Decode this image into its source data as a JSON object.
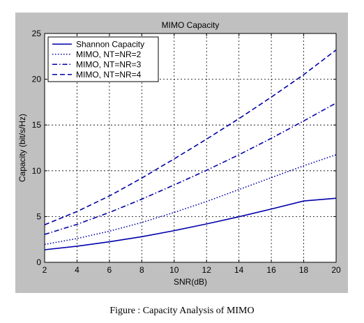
{
  "caption": "Figure : Capacity Analysis of MIMO",
  "chart_data": {
    "type": "line",
    "title": "MIMO Capacity",
    "xlabel": "SNR(dB)",
    "ylabel": "Capacity (bit/s/Hz)",
    "xlim": [
      2,
      20
    ],
    "ylim": [
      0,
      25
    ],
    "xticks": [
      2,
      4,
      6,
      8,
      10,
      12,
      14,
      16,
      18,
      20
    ],
    "yticks": [
      0,
      5,
      10,
      15,
      20,
      25
    ],
    "grid": true,
    "legend_position": "top-left",
    "x": [
      2,
      4,
      6,
      8,
      10,
      12,
      14,
      16,
      18,
      20
    ],
    "series": [
      {
        "name": "Shannon Capacity",
        "style": "solid",
        "color": "#0000aa",
        "values": [
          1.37,
          1.76,
          2.24,
          2.8,
          3.46,
          4.19,
          4.98,
          5.82,
          6.7,
          7.0
        ]
      },
      {
        "name": "MIMO, NT=NR=2",
        "style": "dotted",
        "color": "#0000aa",
        "values": [
          1.95,
          2.6,
          3.4,
          4.35,
          5.45,
          6.65,
          7.95,
          9.25,
          10.55,
          11.75
        ]
      },
      {
        "name": "MIMO, NT=NR=3",
        "style": "dashdot",
        "color": "#0000aa",
        "values": [
          3.05,
          4.15,
          5.45,
          6.9,
          8.45,
          10.05,
          11.75,
          13.55,
          15.45,
          17.4
        ]
      },
      {
        "name": "MIMO, NT=NR=4",
        "style": "dashed",
        "color": "#0000aa",
        "values": [
          4.1,
          5.55,
          7.25,
          9.2,
          11.3,
          13.45,
          15.7,
          18.05,
          20.5,
          23.2
        ]
      }
    ]
  }
}
